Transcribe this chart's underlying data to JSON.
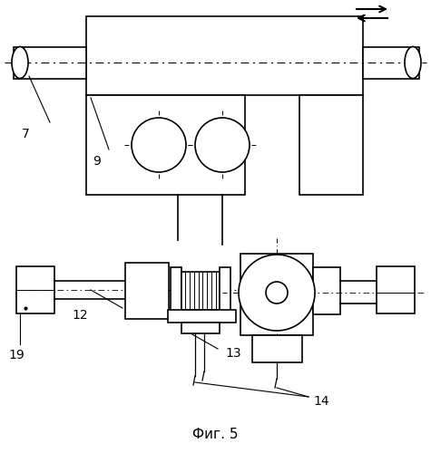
{
  "title": "Фиг. 5",
  "bg_color": "#ffffff",
  "line_color": "#000000",
  "lw": 1.0
}
